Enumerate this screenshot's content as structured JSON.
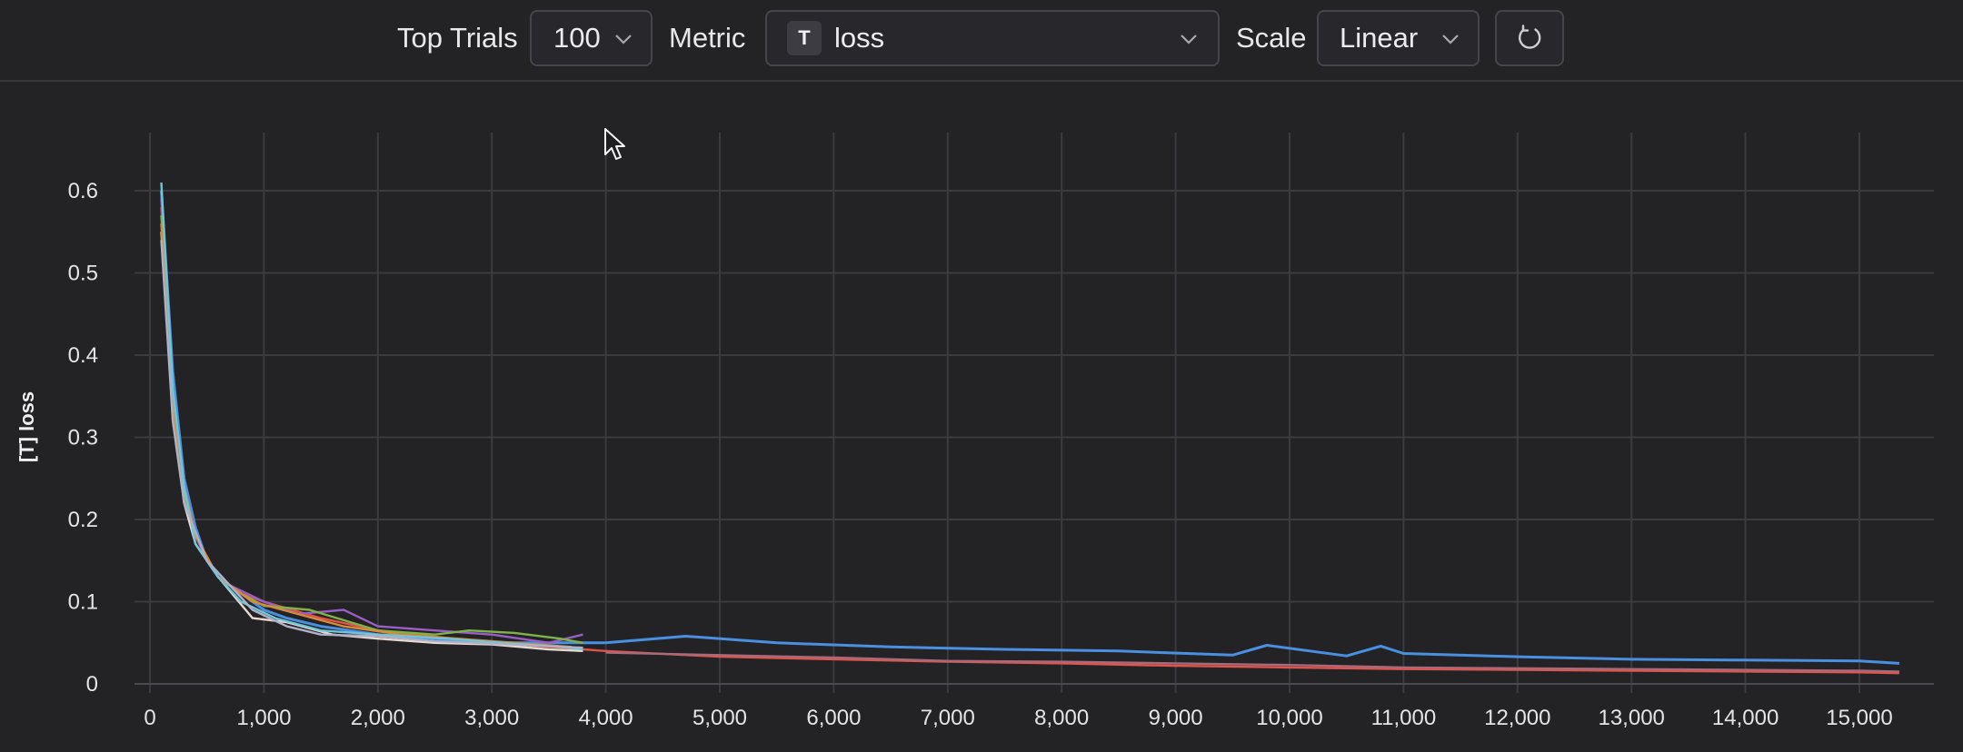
{
  "toolbar": {
    "top_trials_label": "Top Trials",
    "top_trials_value": "100",
    "metric_label": "Metric",
    "metric_type_badge": "T",
    "metric_value": "loss",
    "scale_label": "Scale",
    "scale_value": "Linear",
    "reset_icon": "refresh-icon"
  },
  "chart_data": {
    "type": "line",
    "title": "",
    "xlabel": "",
    "ylabel": "[T] loss",
    "xlim": [
      -100,
      15800
    ],
    "ylim": [
      0,
      0.65
    ],
    "x_ticks": [
      0,
      1000,
      2000,
      3000,
      4000,
      5000,
      6000,
      7000,
      8000,
      9000,
      10000,
      11000,
      12000,
      13000,
      14000,
      15000
    ],
    "x_tick_labels": [
      "0",
      "1,000",
      "2,000",
      "3,000",
      "4,000",
      "5,000",
      "6,000",
      "7,000",
      "8,000",
      "9,000",
      "10,000",
      "11,000",
      "12,000",
      "13,000",
      "14,000",
      "15,000"
    ],
    "y_ticks": [
      0,
      0.1,
      0.2,
      0.3,
      0.4,
      0.5,
      0.6
    ],
    "y_tick_labels": [
      "0",
      "0.1",
      "0.2",
      "0.3",
      "0.4",
      "0.5",
      "0.6"
    ],
    "grid": true,
    "series": [
      {
        "color": "#4a8fe0",
        "x": [
          100,
          200,
          300,
          400,
          500,
          600,
          800,
          1000,
          1200,
          1500,
          2000,
          2500,
          3000,
          3500,
          4000,
          4700,
          5500,
          6500,
          7500,
          8500,
          9500,
          9800,
          10500,
          10800,
          11000,
          12000,
          13000,
          14000,
          15000,
          15350
        ],
        "y": [
          0.6,
          0.38,
          0.25,
          0.19,
          0.15,
          0.13,
          0.11,
          0.09,
          0.08,
          0.07,
          0.06,
          0.055,
          0.05,
          0.05,
          0.05,
          0.058,
          0.05,
          0.045,
          0.042,
          0.04,
          0.035,
          0.047,
          0.034,
          0.046,
          0.037,
          0.033,
          0.03,
          0.029,
          0.028,
          0.025
        ]
      },
      {
        "color": "#e0544a",
        "x": [
          100,
          200,
          300,
          400,
          500,
          600,
          800,
          1000,
          1500,
          2000,
          3000,
          4000,
          5000,
          6000,
          7000,
          8000,
          9000,
          10000,
          11000,
          12000,
          13000,
          14000,
          15000,
          15350
        ],
        "y": [
          0.58,
          0.32,
          0.23,
          0.18,
          0.15,
          0.13,
          0.11,
          0.1,
          0.08,
          0.065,
          0.05,
          0.04,
          0.033,
          0.03,
          0.027,
          0.025,
          0.022,
          0.02,
          0.018,
          0.017,
          0.016,
          0.015,
          0.014,
          0.013
        ]
      },
      {
        "color": "#9a5fc4",
        "x": [
          100,
          200,
          300,
          400,
          500,
          700,
          1000,
          1300,
          1700,
          2000,
          2500,
          3000,
          3500,
          3800
        ],
        "y": [
          0.59,
          0.35,
          0.24,
          0.18,
          0.15,
          0.12,
          0.1,
          0.085,
          0.09,
          0.07,
          0.065,
          0.06,
          0.05,
          0.06
        ]
      },
      {
        "color": "#7fb34a",
        "x": [
          100,
          200,
          300,
          400,
          600,
          800,
          1000,
          1400,
          2000,
          2500,
          2800,
          3200,
          3600,
          3800
        ],
        "y": [
          0.57,
          0.34,
          0.23,
          0.17,
          0.13,
          0.11,
          0.095,
          0.09,
          0.065,
          0.06,
          0.065,
          0.062,
          0.055,
          0.05
        ]
      },
      {
        "color": "#e6d9cf",
        "x": [
          100,
          200,
          300,
          400,
          600,
          900,
          1200,
          1600,
          2000,
          2500,
          3000,
          3500,
          3800
        ],
        "y": [
          0.55,
          0.33,
          0.22,
          0.17,
          0.13,
          0.08,
          0.075,
          0.06,
          0.055,
          0.05,
          0.048,
          0.042,
          0.04
        ]
      },
      {
        "color": "#d98a3a",
        "x": [
          100,
          200,
          300,
          400,
          600,
          900,
          1300,
          1700,
          2200,
          2700,
          3200,
          3700
        ],
        "y": [
          0.56,
          0.33,
          0.24,
          0.18,
          0.13,
          0.1,
          0.085,
          0.07,
          0.06,
          0.055,
          0.05,
          0.045
        ]
      },
      {
        "color": "#6fc6d6",
        "x": [
          100,
          200,
          300,
          400,
          600,
          800,
          1100,
          1500,
          2000,
          2600,
          3100,
          3600,
          3800
        ],
        "y": [
          0.61,
          0.36,
          0.24,
          0.17,
          0.13,
          0.1,
          0.08,
          0.065,
          0.06,
          0.055,
          0.05,
          0.045,
          0.042
        ]
      },
      {
        "color": "#b0b0c8",
        "x": [
          100,
          200,
          300,
          500,
          700,
          900,
          1200,
          1500,
          2000,
          2500,
          3000,
          3500,
          3800
        ],
        "y": [
          0.54,
          0.32,
          0.22,
          0.15,
          0.12,
          0.09,
          0.07,
          0.06,
          0.058,
          0.052,
          0.049,
          0.046,
          0.044
        ]
      },
      {
        "color": "#a86a7a",
        "x": [
          4000,
          5000,
          6000,
          7000,
          8000,
          9000,
          10000,
          11000,
          12000,
          13000,
          14000,
          15000,
          15350
        ],
        "y": [
          0.038,
          0.035,
          0.032,
          0.028,
          0.027,
          0.025,
          0.023,
          0.02,
          0.019,
          0.018,
          0.017,
          0.016,
          0.015
        ]
      }
    ]
  }
}
